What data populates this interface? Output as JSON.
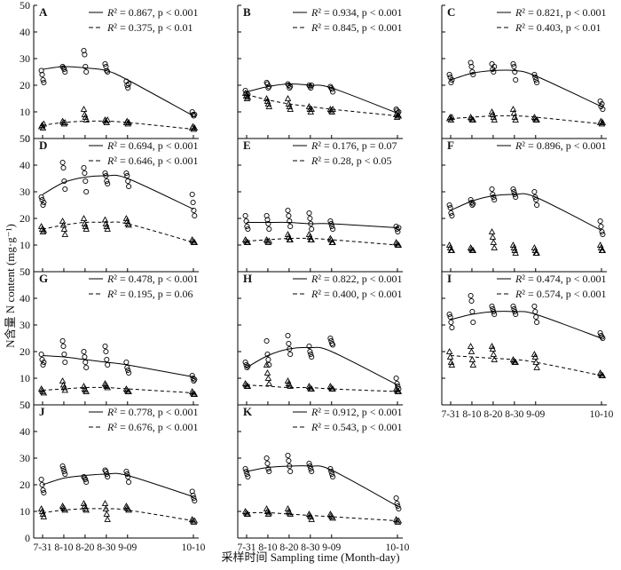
{
  "figure": {
    "ylabel": "N含量 N content (mg·g⁻¹)",
    "xlabel": "采样时间 Sampling time (Month-day)"
  },
  "chart_data": {
    "type": "scatter",
    "x_categories": [
      "7-31",
      "8-10",
      "8-20",
      "8-30",
      "9-09",
      "10-10"
    ],
    "x_days": [
      0,
      10,
      20,
      30,
      40,
      71
    ],
    "ylim": [
      0,
      50
    ],
    "yticks": [
      0,
      10,
      20,
      30,
      40,
      50
    ],
    "grid": false,
    "series_styles": {
      "circle": {
        "marker": "circle",
        "line": "solid"
      },
      "triangle": {
        "marker": "triangle",
        "line": "dashed"
      }
    },
    "panels": [
      {
        "id": "A",
        "circle": {
          "points": [
            [
              25.5,
              24,
              22,
              21
            ],
            [
              27,
              26.5,
              26,
              25
            ],
            [
              33,
              31.5,
              27,
              25
            ],
            [
              28,
              27,
              25.5,
              25
            ],
            [
              21.5,
              20,
              19,
              20.5
            ],
            [
              10,
              9,
              8.5,
              9
            ]
          ],
          "fit": [
            26,
            27,
            26.5,
            25.5,
            22,
            8.5
          ],
          "stat": "0.867, p < 0.001"
        },
        "triangle": {
          "points": [
            [
              4.5,
              5,
              4,
              5.5
            ],
            [
              6.5,
              6,
              5.5,
              6
            ],
            [
              11,
              9,
              8,
              7
            ],
            [
              7,
              6.5,
              6,
              7
            ],
            [
              6,
              6.5,
              5.5,
              6
            ],
            [
              4,
              4.5,
              3.5,
              4
            ]
          ],
          "fit": [
            5,
            6,
            6.5,
            6.5,
            6,
            3.5
          ],
          "stat": "0.375, p < 0.01"
        }
      },
      {
        "id": "B",
        "circle": {
          "points": [
            [
              18,
              17,
              16,
              16.5
            ],
            [
              21,
              20.5,
              19,
              19.5
            ],
            [
              20.5,
              20,
              19,
              19.5
            ],
            [
              20,
              19.5,
              19,
              20
            ],
            [
              19.5,
              19,
              18.5,
              17.5
            ],
            [
              11,
              10.5,
              9.5,
              10
            ]
          ],
          "fit": [
            17.5,
            19.5,
            20.5,
            20,
            19,
            9.5
          ],
          "stat": "0.934, p < 0.001"
        },
        "triangle": {
          "points": [
            [
              17,
              16,
              15,
              15.5
            ],
            [
              15,
              14,
              13,
              12
            ],
            [
              15,
              13,
              12,
              11
            ],
            [
              12,
              11,
              10,
              11
            ],
            [
              11,
              10.5,
              10,
              11
            ],
            [
              9,
              8,
              8.5,
              8.5
            ]
          ],
          "fit": [
            16.5,
            14.5,
            13,
            12,
            11,
            8.5
          ],
          "stat": "0.845, p < 0.001"
        }
      },
      {
        "id": "C",
        "circle": {
          "points": [
            [
              24,
              23,
              21,
              22
            ],
            [
              28.5,
              27,
              25,
              24
            ],
            [
              28,
              26,
              25,
              27
            ],
            [
              28,
              27,
              25,
              22
            ],
            [
              24,
              23,
              22,
              21
            ],
            [
              14,
              12,
              13,
              11
            ]
          ],
          "fit": [
            22,
            24.5,
            25.5,
            25.5,
            23.5,
            12
          ],
          "stat": "0.821, p < 0.001"
        },
        "triangle": {
          "points": [
            [
              7.5,
              8,
              7,
              8
            ],
            [
              8,
              7.5,
              7,
              7
            ],
            [
              10,
              9,
              8,
              7
            ],
            [
              11,
              9.5,
              8,
              7
            ],
            [
              8,
              7.5,
              7,
              7
            ],
            [
              6,
              6.5,
              5.5,
              6
            ]
          ],
          "fit": [
            7.5,
            8,
            8.5,
            8.5,
            8,
            5.5
          ],
          "stat": "0.403, p < 0.01"
        }
      },
      {
        "id": "D",
        "circle": {
          "points": [
            [
              28,
              27,
              25,
              26
            ],
            [
              41,
              39,
              34,
              31
            ],
            [
              39,
              37,
              34,
              30
            ],
            [
              37,
              36,
              34,
              33
            ],
            [
              37,
              36,
              34,
              32
            ],
            [
              29,
              26,
              23,
              21
            ]
          ],
          "fit": [
            29,
            33.5,
            35.5,
            36,
            35,
            23.5
          ],
          "stat": "0.694, p < 0.001"
        },
        "triangle": {
          "points": [
            [
              17,
              16,
              15,
              15.5
            ],
            [
              19,
              17.5,
              16,
              14
            ],
            [
              20,
              18,
              17,
              16
            ],
            [
              19.5,
              18,
              17,
              16
            ],
            [
              20,
              19,
              18,
              17.5
            ],
            [
              12,
              11.5,
              11,
              11
            ]
          ],
          "fit": [
            16,
            17.5,
            18.5,
            18.5,
            18,
            11
          ],
          "stat": "0.646, p < 0.001"
        }
      },
      {
        "id": "E",
        "circle": {
          "points": [
            [
              21,
              19,
              17,
              16
            ],
            [
              21,
              19.5,
              18,
              16
            ],
            [
              23,
              21,
              19,
              17
            ],
            [
              22,
              20,
              18,
              16
            ],
            [
              19,
              18,
              17,
              16
            ],
            [
              17,
              16,
              15,
              16.5
            ]
          ],
          "fit": [
            18.5,
            18.5,
            18.5,
            18,
            18,
            16.5
          ],
          "stat": "0.176, p = 0.07"
        },
        "triangle": {
          "points": [
            [
              12,
              11.5,
              11,
              11
            ],
            [
              12,
              11.5,
              11,
              11.5
            ],
            [
              14,
              13,
              12,
              12
            ],
            [
              14,
              13,
              12,
              12
            ],
            [
              12.5,
              12,
              11,
              11
            ],
            [
              11,
              10.5,
              10,
              10
            ]
          ],
          "fit": [
            11.5,
            12,
            12.5,
            12.5,
            12,
            10
          ],
          "stat": "0.28, p < 0.05"
        }
      },
      {
        "id": "F",
        "circle": {
          "points": [
            [
              25,
              24,
              22,
              21
            ],
            [
              27,
              26,
              25,
              25.5
            ],
            [
              31,
              29,
              28,
              27
            ],
            [
              31,
              30,
              29,
              28
            ],
            [
              30,
              28,
              27,
              25
            ],
            [
              19,
              17,
              15,
              14
            ]
          ],
          "fit": [
            23,
            26.5,
            28.5,
            29,
            28,
            15.5
          ],
          "stat": "0.896, p < 0.001"
        },
        "triangle": {
          "points": [
            [
              10,
              9,
              8,
              8
            ],
            [
              9,
              8.5,
              8,
              8
            ],
            [
              15,
              13,
              11,
              9
            ],
            [
              10,
              9,
              8,
              7
            ],
            [
              9,
              8,
              7,
              7
            ],
            [
              10,
              9,
              8,
              8
            ]
          ],
          "fit": null,
          "stat": ""
        }
      },
      {
        "id": "G",
        "circle": {
          "points": [
            [
              19,
              17,
              15,
              16
            ],
            [
              24,
              22,
              19,
              16
            ],
            [
              20,
              18,
              16,
              14
            ],
            [
              22,
              20,
              17,
              15
            ],
            [
              16,
              14,
              13,
              12
            ],
            [
              11,
              10,
              9,
              9.5
            ]
          ],
          "fit": [
            18.5,
            18,
            17,
            16,
            15,
            10.5
          ],
          "stat": "0.478, p < 0.001"
        },
        "triangle": {
          "points": [
            [
              6,
              5.5,
              5,
              4.5
            ],
            [
              9,
              7.5,
              6.5,
              5.5
            ],
            [
              7,
              6,
              5.5,
              5
            ],
            [
              8,
              7.5,
              7,
              6.5
            ],
            [
              6,
              5.5,
              5,
              5
            ],
            [
              5,
              4.5,
              4,
              4
            ]
          ],
          "fit": [
            5.5,
            6,
            6.5,
            6.5,
            6,
            4.5
          ],
          "stat": "0.195, p = 0.06"
        }
      },
      {
        "id": "H",
        "circle": {
          "points": [
            [
              16,
              15,
              14,
              14.5
            ],
            [
              24,
              19,
              17,
              15
            ],
            [
              26,
              23,
              21,
              19
            ],
            [
              22,
              20,
              19,
              18
            ],
            [
              25,
              24,
              23,
              22.5
            ],
            [
              10,
              8,
              7,
              6
            ]
          ],
          "fit": [
            14,
            18.5,
            21,
            21.5,
            20,
            7.5
          ],
          "stat": "0.822, p < 0.001"
        },
        "triangle": {
          "points": [
            [
              8,
              7.5,
              7,
              7
            ],
            [
              15,
              12,
              10,
              8
            ],
            [
              9,
              8,
              7.5,
              7
            ],
            [
              7,
              6.5,
              6,
              6
            ],
            [
              7,
              6.5,
              6,
              6
            ],
            [
              6,
              5.5,
              5,
              5
            ]
          ],
          "fit": [
            7.5,
            7,
            6.5,
            6.5,
            6,
            5
          ],
          "stat": "0.400, p < 0.001"
        }
      },
      {
        "id": "I",
        "circle": {
          "points": [
            [
              34,
              33,
              31,
              29
            ],
            [
              41,
              39,
              35,
              31
            ],
            [
              37,
              36,
              35,
              34
            ],
            [
              37,
              36,
              35,
              34
            ],
            [
              37,
              35,
              33,
              31
            ],
            [
              27,
              26,
              25.5,
              25
            ]
          ],
          "fit": [
            32,
            34,
            35,
            35,
            34,
            25
          ],
          "stat": "0.474, p < 0.001"
        },
        "triangle": {
          "points": [
            [
              20,
              18,
              16,
              15
            ],
            [
              22,
              20,
              17,
              15
            ],
            [
              22,
              21,
              19,
              17
            ],
            [
              17,
              16.5,
              16,
              16
            ],
            [
              19,
              18,
              16,
              14
            ],
            [
              12,
              11.5,
              11,
              11
            ]
          ],
          "fit": [
            18.5,
            18,
            17.5,
            17,
            16,
            11
          ],
          "stat": "0.574, p < 0.001"
        }
      },
      {
        "id": "J",
        "circle": {
          "points": [
            [
              22,
              20,
              18,
              17
            ],
            [
              27,
              26,
              25,
              24
            ],
            [
              23,
              22.5,
              22,
              21
            ],
            [
              25.5,
              25,
              24,
              23
            ],
            [
              25,
              24,
              23,
              21
            ],
            [
              17.5,
              16,
              15,
              14
            ]
          ],
          "fit": [
            20,
            22.5,
            23.5,
            24,
            23.5,
            15.5
          ],
          "stat": "0.778, p < 0.001"
        },
        "triangle": {
          "points": [
            [
              11,
              10,
              9,
              8
            ],
            [
              12,
              11.5,
              11,
              10.5
            ],
            [
              13,
              12,
              11,
              10.5
            ],
            [
              13,
              11,
              9,
              7
            ],
            [
              12,
              11.5,
              11,
              10.5
            ],
            [
              7,
              6.5,
              6,
              6.5
            ]
          ],
          "fit": [
            9.5,
            10.5,
            11,
            11,
            10.5,
            6.5
          ],
          "stat": "0.676, p < 0.001"
        }
      },
      {
        "id": "K",
        "circle": {
          "points": [
            [
              26,
              25,
              24,
              23
            ],
            [
              30,
              28,
              26,
              25
            ],
            [
              31,
              29,
              27,
              25
            ],
            [
              28,
              27,
              26,
              25
            ],
            [
              26,
              25,
              24,
              23
            ],
            [
              15,
              13,
              12,
              11
            ]
          ],
          "fit": [
            25,
            26.5,
            27,
            27,
            25.5,
            12
          ],
          "stat": "0.912, p < 0.001"
        },
        "triangle": {
          "points": [
            [
              10,
              9.5,
              9,
              9
            ],
            [
              11,
              10,
              9,
              9.5
            ],
            [
              11,
              10,
              9.5,
              9
            ],
            [
              9,
              8.5,
              8,
              7
            ],
            [
              9,
              8.5,
              8,
              7.5
            ],
            [
              7,
              6.5,
              6,
              6.5
            ]
          ],
          "fit": [
            9.5,
            9.5,
            9,
            8.5,
            8,
            6.5
          ],
          "stat": "0.543, p < 0.001"
        }
      }
    ]
  }
}
